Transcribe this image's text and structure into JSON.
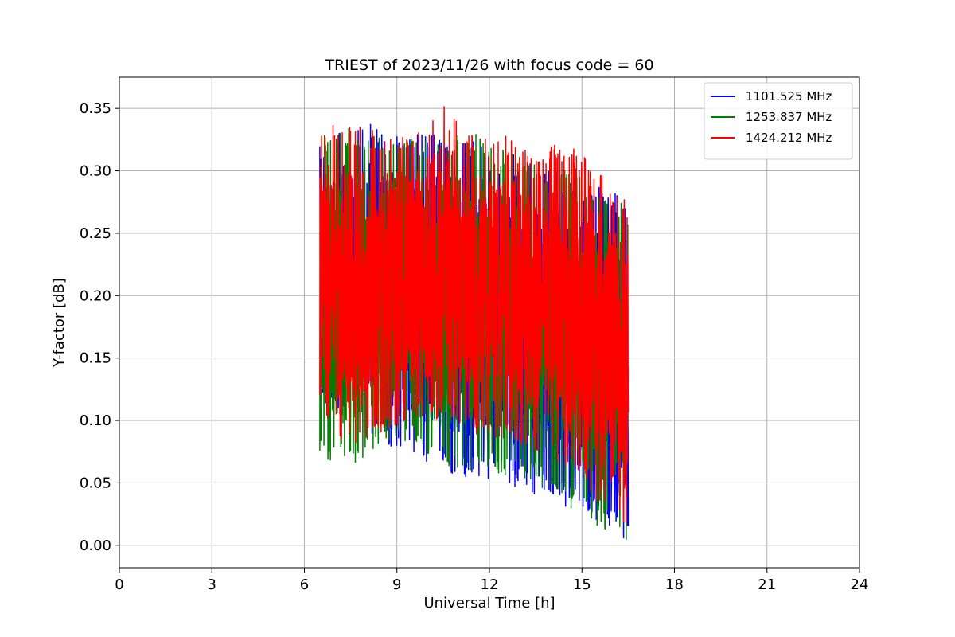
{
  "chart_data": {
    "type": "line",
    "title": "TRIEST of 2023/11/26 with focus code = 60",
    "xlabel": "Universal Time [h]",
    "ylabel": "Y-factor [dB]",
    "xlim": [
      0,
      24
    ],
    "ylim": [
      -0.018,
      0.375
    ],
    "xticks": [
      0,
      3,
      6,
      9,
      12,
      15,
      18,
      21,
      24
    ],
    "yticks": [
      0.0,
      0.05,
      0.1,
      0.15,
      0.2,
      0.25,
      0.3,
      0.35
    ],
    "ytick_labels": [
      "0.00",
      "0.05",
      "0.10",
      "0.15",
      "0.20",
      "0.25",
      "0.30",
      "0.35"
    ],
    "grid": true,
    "legend_position": "top-right",
    "series": [
      {
        "name": "1101.525 MHz",
        "color": "#0000ff",
        "x_range": [
          6.5,
          16.5
        ],
        "envelope": {
          "x": [
            6.5,
            7.5,
            8.5,
            9.5,
            10.5,
            11.5,
            12.5,
            13.5,
            14.5,
            15.5,
            16.5
          ],
          "upper": [
            0.32,
            0.345,
            0.335,
            0.33,
            0.33,
            0.325,
            0.315,
            0.31,
            0.3,
            0.29,
            0.28
          ],
          "lower": [
            0.11,
            0.1,
            0.08,
            0.07,
            0.06,
            0.05,
            0.05,
            0.04,
            0.03,
            0.02,
            0.0
          ]
        }
      },
      {
        "name": "1253.837 MHz",
        "color": "#008000",
        "x_range": [
          6.5,
          16.5
        ],
        "envelope": {
          "x": [
            6.5,
            7.5,
            8.5,
            9.5,
            10.5,
            11.5,
            12.5,
            13.5,
            14.5,
            15.5,
            16.5
          ],
          "upper": [
            0.33,
            0.335,
            0.33,
            0.325,
            0.33,
            0.33,
            0.32,
            0.31,
            0.3,
            0.29,
            0.27
          ],
          "lower": [
            0.07,
            0.06,
            0.08,
            0.08,
            0.06,
            0.06,
            0.05,
            0.05,
            0.03,
            0.015,
            0.0
          ]
        }
      },
      {
        "name": "1424.212 MHz",
        "color": "#ff0000",
        "x_range": [
          6.5,
          16.5
        ],
        "envelope": {
          "x": [
            6.5,
            7.5,
            8.5,
            9.5,
            10.5,
            11.5,
            12.5,
            13.5,
            14.5,
            15.5,
            16.5
          ],
          "upper": [
            0.34,
            0.34,
            0.33,
            0.33,
            0.355,
            0.33,
            0.33,
            0.31,
            0.33,
            0.3,
            0.28
          ],
          "lower": [
            0.11,
            0.07,
            0.09,
            0.1,
            0.1,
            0.09,
            0.08,
            0.07,
            0.06,
            0.03,
            0.0
          ]
        }
      }
    ]
  }
}
